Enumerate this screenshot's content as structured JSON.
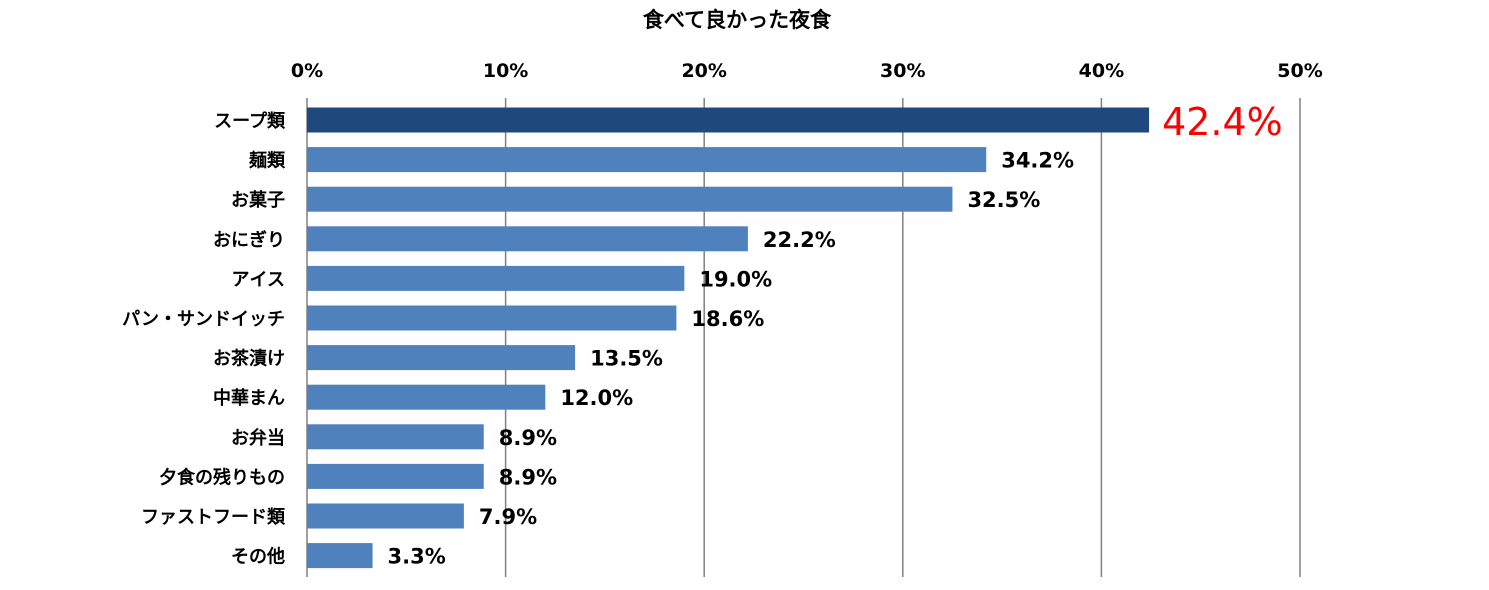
{
  "chart_data": {
    "type": "bar",
    "orientation": "horizontal",
    "title": "食べて良かった夜食",
    "categories": [
      "スープ類",
      "麺類",
      "お菓子",
      "おにぎり",
      "アイス",
      "パン・サンドイッチ",
      "お茶漬け",
      "中華まん",
      "お弁当",
      "夕食の残りもの",
      "ファストフード類",
      "その他"
    ],
    "values": [
      42.4,
      34.2,
      32.5,
      22.2,
      19.0,
      18.6,
      13.5,
      12.0,
      8.9,
      8.9,
      7.9,
      3.3
    ],
    "value_labels": [
      "42.4%",
      "34.2%",
      "32.5%",
      "22.2%",
      "19.0%",
      "18.6%",
      "13.5%",
      "12.0%",
      "8.9%",
      "8.9%",
      "7.9%",
      "3.3%"
    ],
    "xlim": [
      0,
      50
    ],
    "x_ticks": [
      0,
      10,
      20,
      30,
      40,
      50
    ],
    "x_tick_labels": [
      "0%",
      "10%",
      "20%",
      "30%",
      "40%",
      "50%"
    ],
    "x_axis_position": "top",
    "grid": "vertical",
    "highlight_index": 0,
    "colors": {
      "bar": "#4f81bd",
      "bar_highlight": "#1f497d",
      "gridline": "#808080",
      "highlight_label": "#ff0000"
    }
  }
}
